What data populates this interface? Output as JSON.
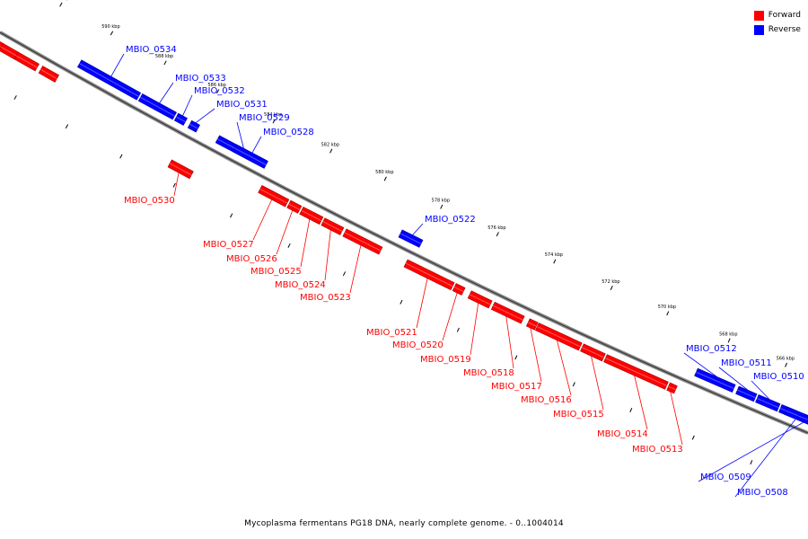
{
  "legend": {
    "forward": {
      "label": "Forward",
      "color": "#ff0000"
    },
    "reverse": {
      "label": "Reverse",
      "color": "#0000ff"
    }
  },
  "caption": "Mycoplasma fermentans PG18 DNA, nearly complete genome. - 0..1004014",
  "ticks": [
    "592 kbp",
    "590 kbp",
    "588 kbp",
    "586 kbp",
    "584 kbp",
    "582 kbp",
    "580 kbp",
    "578 kbp",
    "576 kbp",
    "574 kbp",
    "572 kbp",
    "570 kbp",
    "568 kbp",
    "566 kbp"
  ],
  "genes": [
    {
      "name": "",
      "strand": "forward"
    },
    {
      "name": "",
      "strand": "forward"
    },
    {
      "name": "",
      "strand": "forward"
    },
    {
      "name": "",
      "strand": "forward"
    },
    {
      "name": "MBIO_0534",
      "strand": "reverse"
    },
    {
      "name": "MBIO_0533",
      "strand": "reverse"
    },
    {
      "name": "MBIO_0532",
      "strand": "reverse"
    },
    {
      "name": "MBIO_0531",
      "strand": "reverse"
    },
    {
      "name": "MBIO_0529",
      "strand": "reverse"
    },
    {
      "name": "MBIO_0528",
      "strand": "reverse"
    },
    {
      "name": "MBIO_0530",
      "strand": "forward"
    },
    {
      "name": "MBIO_0527",
      "strand": "forward"
    },
    {
      "name": "MBIO_0526",
      "strand": "forward"
    },
    {
      "name": "MBIO_0525",
      "strand": "forward"
    },
    {
      "name": "MBIO_0524",
      "strand": "forward"
    },
    {
      "name": "MBIO_0523",
      "strand": "forward"
    },
    {
      "name": "MBIO_0522",
      "strand": "reverse"
    },
    {
      "name": "MBIO_0521",
      "strand": "forward"
    },
    {
      "name": "MBIO_0520",
      "strand": "forward"
    },
    {
      "name": "MBIO_0519",
      "strand": "forward"
    },
    {
      "name": "MBIO_0518",
      "strand": "forward"
    },
    {
      "name": "MBIO_0517",
      "strand": "forward"
    },
    {
      "name": "MBIO_0516",
      "strand": "forward"
    },
    {
      "name": "MBIO_0515",
      "strand": "forward"
    },
    {
      "name": "MBIO_0514",
      "strand": "forward"
    },
    {
      "name": "MBIO_0513",
      "strand": "forward"
    },
    {
      "name": "MBIO_0512",
      "strand": "reverse"
    },
    {
      "name": "MBIO_0511",
      "strand": "reverse"
    },
    {
      "name": "MBIO_0510",
      "strand": "reverse"
    },
    {
      "name": "",
      "strand": "reverse"
    },
    {
      "name": "MBIO_0509",
      "strand": "reverse"
    },
    {
      "name": "MBIO_0508",
      "strand": "reverse"
    }
  ]
}
